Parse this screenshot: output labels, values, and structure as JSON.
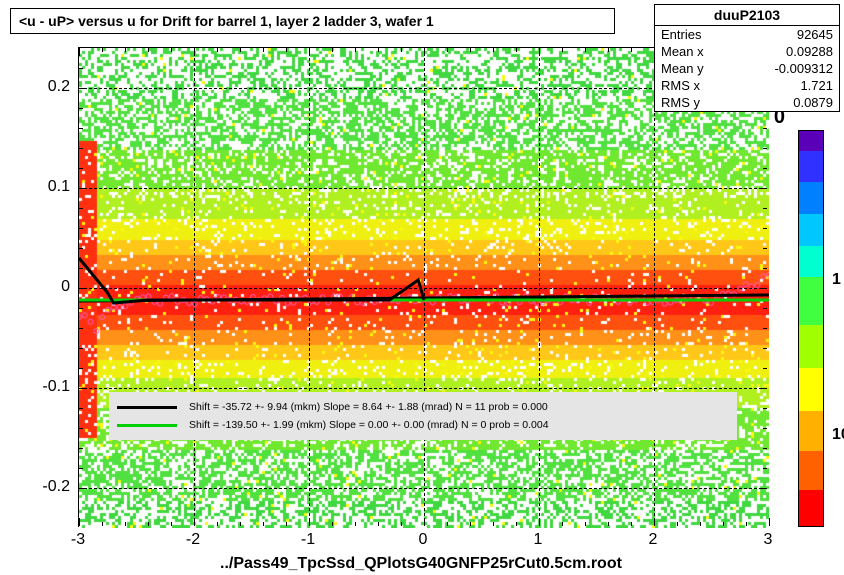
{
  "title": "<u - uP>       versus   u for Drift for barrel 1, layer 2 ladder 3, wafer 1",
  "footer": "../Pass49_TpcSsd_QPlotsG40GNFP25rCut0.5cm.root",
  "stats": {
    "name": "duuP2103",
    "rows": [
      {
        "label": "Entries",
        "value": "92645"
      },
      {
        "label": "Mean x",
        "value": "0.09288"
      },
      {
        "label": "Mean y",
        "value": "-0.009312"
      },
      {
        "label": "RMS x",
        "value": "1.721"
      },
      {
        "label": "RMS y",
        "value": "0.0879"
      }
    ]
  },
  "chart": {
    "type": "heatmap",
    "xlim": [
      -3,
      3
    ],
    "ylim": [
      -0.24,
      0.24
    ],
    "xticks": [
      -3,
      -2,
      -1,
      0,
      1,
      2,
      3
    ],
    "yticks": [
      -0.2,
      -0.1,
      0,
      0.1,
      0.2
    ],
    "ytick_labels": [
      "-0.2",
      "-0.1",
      "0",
      "0.1",
      "0.2"
    ],
    "background_color": "#ffffff",
    "grid_color": "#000000",
    "tick_fontsize": 16,
    "title_fontsize": 14,
    "fit_lines": [
      {
        "color": "#000000",
        "y_intercept": -0.01,
        "slope_visual": 0.001,
        "width": 3
      },
      {
        "color": "#00d000",
        "y_intercept": -0.012,
        "slope_visual": 0.0,
        "width": 3
      }
    ],
    "legend": {
      "rows": [
        {
          "swatch": "#000000",
          "text": "Shift =   -35.72 +-  9.94 (mkm) Slope =     8.64 +- 1.88 (mrad)  N = 11 prob = 0.000"
        },
        {
          "swatch": "#00d000",
          "text": "Shift =  -139.50 +-  1.99 (mkm) Slope =     0.00 +- 0.00 (mrad)  N = 0 prob = 0.004"
        }
      ],
      "background": "#e5e5e5",
      "fontsize": 10.5
    },
    "colorbar": {
      "scale": "log",
      "ticks": [
        {
          "label": "1",
          "pos": 0.38
        },
        {
          "label": "10",
          "pos": 0.77
        }
      ],
      "extra_label": {
        "text": "0",
        "pos_note": "right of plot top area"
      },
      "colors": [
        {
          "c": "#5a00b8",
          "h": 0.05
        },
        {
          "c": "#3030ff",
          "h": 0.08
        },
        {
          "c": "#0080ff",
          "h": 0.08
        },
        {
          "c": "#00c8ff",
          "h": 0.08
        },
        {
          "c": "#00ffd0",
          "h": 0.08
        },
        {
          "c": "#40ff40",
          "h": 0.12
        },
        {
          "c": "#a0ff00",
          "h": 0.11
        },
        {
          "c": "#ffff00",
          "h": 0.11
        },
        {
          "c": "#ffb000",
          "h": 0.1
        },
        {
          "c": "#ff6000",
          "h": 0.1
        },
        {
          "c": "#ff0000",
          "h": 0.09
        }
      ]
    },
    "density_bands": [
      {
        "y": 0.22,
        "h": 0.04,
        "color": "#50e040",
        "alpha": 0.95,
        "gaps": 0.45
      },
      {
        "y": 0.17,
        "h": 0.06,
        "color": "#60e830",
        "alpha": 0.95,
        "gaps": 0.35
      },
      {
        "y": 0.11,
        "h": 0.07,
        "color": "#80f020",
        "alpha": 0.95,
        "gaps": 0.2
      },
      {
        "y": 0.05,
        "h": 0.05,
        "color": "#e8e820",
        "alpha": 0.95,
        "gaps": 0.05
      },
      {
        "y": 0.0,
        "h": 0.05,
        "color": "#ff8020",
        "alpha": 0.98,
        "gaps": 0.02
      },
      {
        "y": -0.03,
        "h": 0.05,
        "color": "#ff3010",
        "alpha": 0.98,
        "gaps": 0.02
      },
      {
        "y": -0.07,
        "h": 0.05,
        "color": "#ffb020",
        "alpha": 0.95,
        "gaps": 0.05
      },
      {
        "y": -0.12,
        "h": 0.06,
        "color": "#a0f020",
        "alpha": 0.92,
        "gaps": 0.15
      },
      {
        "y": -0.18,
        "h": 0.06,
        "color": "#60e830",
        "alpha": 0.9,
        "gaps": 0.3
      },
      {
        "y": -0.23,
        "h": 0.04,
        "color": "#50e040",
        "alpha": 0.88,
        "gaps": 0.45
      }
    ]
  }
}
